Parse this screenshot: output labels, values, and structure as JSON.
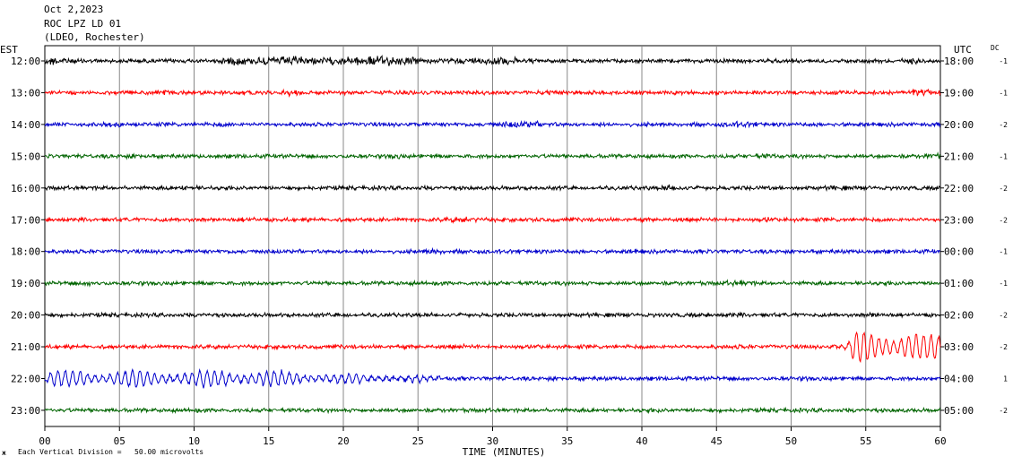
{
  "header": {
    "date": "Oct 2,2023",
    "station": "ROC LPZ LD 01",
    "network": "(LDEO, Rochester)"
  },
  "left_zone": "EST",
  "right_zone": "UTC",
  "dc_header": "DC",
  "footer": {
    "scale_mark": "ж",
    "scale_note": "Each Vertical Division =   50.00 microvolts"
  },
  "chart_data": {
    "type": "line",
    "xlabel": "TIME (MINUTES)",
    "xlim": [
      0,
      60
    ],
    "x_ticks": [
      "00",
      "05",
      "10",
      "15",
      "20",
      "25",
      "30",
      "35",
      "40",
      "45",
      "50",
      "55",
      "60"
    ],
    "trace_colors": [
      "#000000",
      "#ff0000",
      "#0000cc",
      "#006400"
    ],
    "rows": [
      {
        "est": "12:00",
        "utc": "18:00",
        "dc": "-1",
        "color": "#000000",
        "bursts": [
          [
            0.5,
            2,
            2.2
          ],
          [
            13,
            2,
            2.2
          ],
          [
            16,
            3,
            2.6
          ],
          [
            22,
            4,
            2.8
          ],
          [
            30,
            3,
            2.2
          ],
          [
            58,
            2,
            1.6
          ]
        ],
        "quake": null
      },
      {
        "est": "13:00",
        "utc": "19:00",
        "dc": "-1",
        "color": "#ff0000",
        "bursts": [
          [
            8,
            2,
            1.6
          ],
          [
            16.5,
            1,
            1.8
          ],
          [
            34,
            1.5,
            1.5
          ],
          [
            58.5,
            2,
            1.8
          ]
        ],
        "quake": null
      },
      {
        "est": "14:00",
        "utc": "20:00",
        "dc": "-2",
        "color": "#0000cc",
        "bursts": [
          [
            4.5,
            1,
            1.5
          ],
          [
            12,
            1.5,
            1.4
          ],
          [
            32,
            3,
            1.8
          ],
          [
            46.5,
            2,
            1.6
          ]
        ],
        "quake": null
      },
      {
        "est": "15:00",
        "utc": "21:00",
        "dc": "-1",
        "color": "#006400",
        "bursts": [
          [
            6,
            1.5,
            1.4
          ],
          [
            23.5,
            1.5,
            1.4
          ],
          [
            48,
            2,
            1.4
          ],
          [
            59.5,
            1,
            1.7
          ]
        ],
        "quake": null
      },
      {
        "est": "16:00",
        "utc": "22:00",
        "dc": "-2",
        "color": "#000000",
        "bursts": [
          [
            9.5,
            1.5,
            1.5
          ],
          [
            42,
            1.5,
            1.6
          ],
          [
            53,
            1.5,
            1.4
          ]
        ],
        "quake": null
      },
      {
        "est": "17:00",
        "utc": "23:00",
        "dc": "-2",
        "color": "#ff0000",
        "bursts": [
          [
            13.5,
            1.5,
            1.4
          ],
          [
            28,
            2,
            1.6
          ],
          [
            48.5,
            1.5,
            1.3
          ]
        ],
        "quake": null
      },
      {
        "est": "18:00",
        "utc": "00:00",
        "dc": "-1",
        "color": "#0000cc",
        "bursts": [
          [
            26,
            1,
            1.8
          ],
          [
            39.5,
            1.5,
            1.3
          ]
        ],
        "quake": null
      },
      {
        "est": "19:00",
        "utc": "01:00",
        "dc": "-1",
        "color": "#006400",
        "bursts": [
          [
            3,
            1.5,
            1.4
          ],
          [
            46.5,
            2,
            1.6
          ]
        ],
        "quake": null
      },
      {
        "est": "20:00",
        "utc": "02:00",
        "dc": "-2",
        "color": "#000000",
        "bursts": [
          [
            20,
            1.5,
            1.3
          ],
          [
            46,
            1.5,
            1.3
          ],
          [
            55.5,
            1.5,
            1.4
          ]
        ],
        "quake": null
      },
      {
        "est": "21:00",
        "utc": "03:00",
        "dc": "-2",
        "color": "#ff0000",
        "bursts": [
          [
            28,
            2,
            1.2
          ],
          [
            33,
            1.5,
            1.2
          ],
          [
            46.5,
            2,
            1.2
          ]
        ],
        "quake": {
          "start": 52.5,
          "peak_start": 54.5,
          "peak_end": 58.5,
          "amp": 17,
          "period": 0.5
        }
      },
      {
        "est": "22:00",
        "utc": "04:00",
        "dc": "1",
        "color": "#0000cc",
        "bursts": [
          [
            34,
            1.5,
            1.2
          ],
          [
            51,
            1.5,
            1.2
          ]
        ],
        "quake": {
          "start": 0,
          "peak_start": 0,
          "peak_end": 14,
          "amp": 9,
          "period": 0.5,
          "fade_end": 30
        }
      },
      {
        "est": "23:00",
        "utc": "05:00",
        "dc": "-2",
        "color": "#006400",
        "bursts": [
          [
            10,
            1.5,
            1.2
          ],
          [
            41,
            1.5,
            1.2
          ]
        ],
        "quake": null
      }
    ]
  }
}
